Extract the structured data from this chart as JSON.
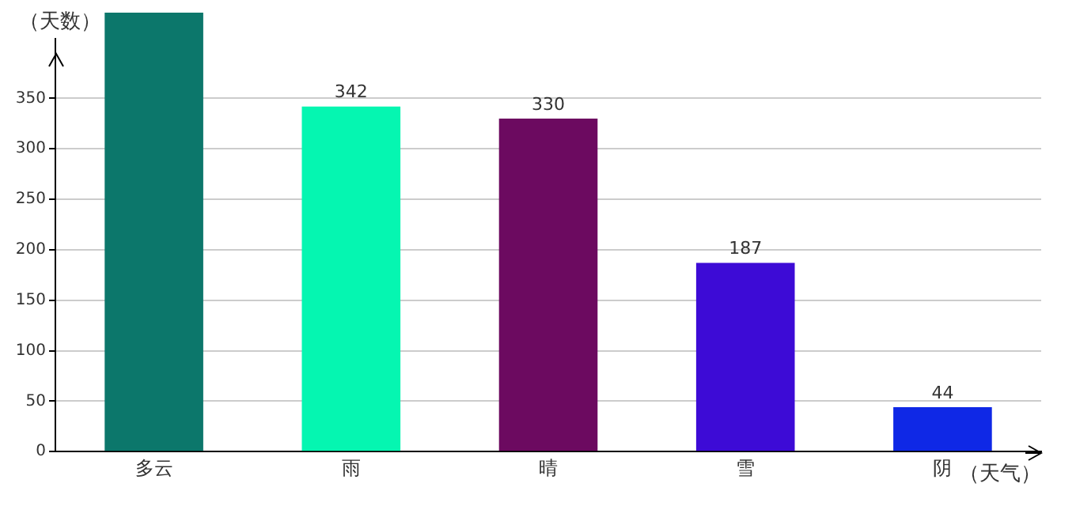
{
  "chart_data": {
    "type": "bar",
    "ylabel": "（天数）",
    "xlabel": "（天气）",
    "categories": [
      "多云",
      "雨",
      "晴",
      "雪",
      "阴"
    ],
    "values": [
      435,
      342,
      330,
      187,
      44
    ],
    "value_labels": [
      null,
      "342",
      "330",
      "187",
      "44"
    ],
    "colors": [
      "#0c776b",
      "#05f6b1",
      "#6c0a60",
      "#3d0bd6",
      "#0f28e6"
    ],
    "ylim": [
      0,
      435
    ],
    "yticks": [
      0,
      50,
      100,
      150,
      200,
      250,
      300,
      350
    ],
    "grid": "y",
    "legend": false
  }
}
